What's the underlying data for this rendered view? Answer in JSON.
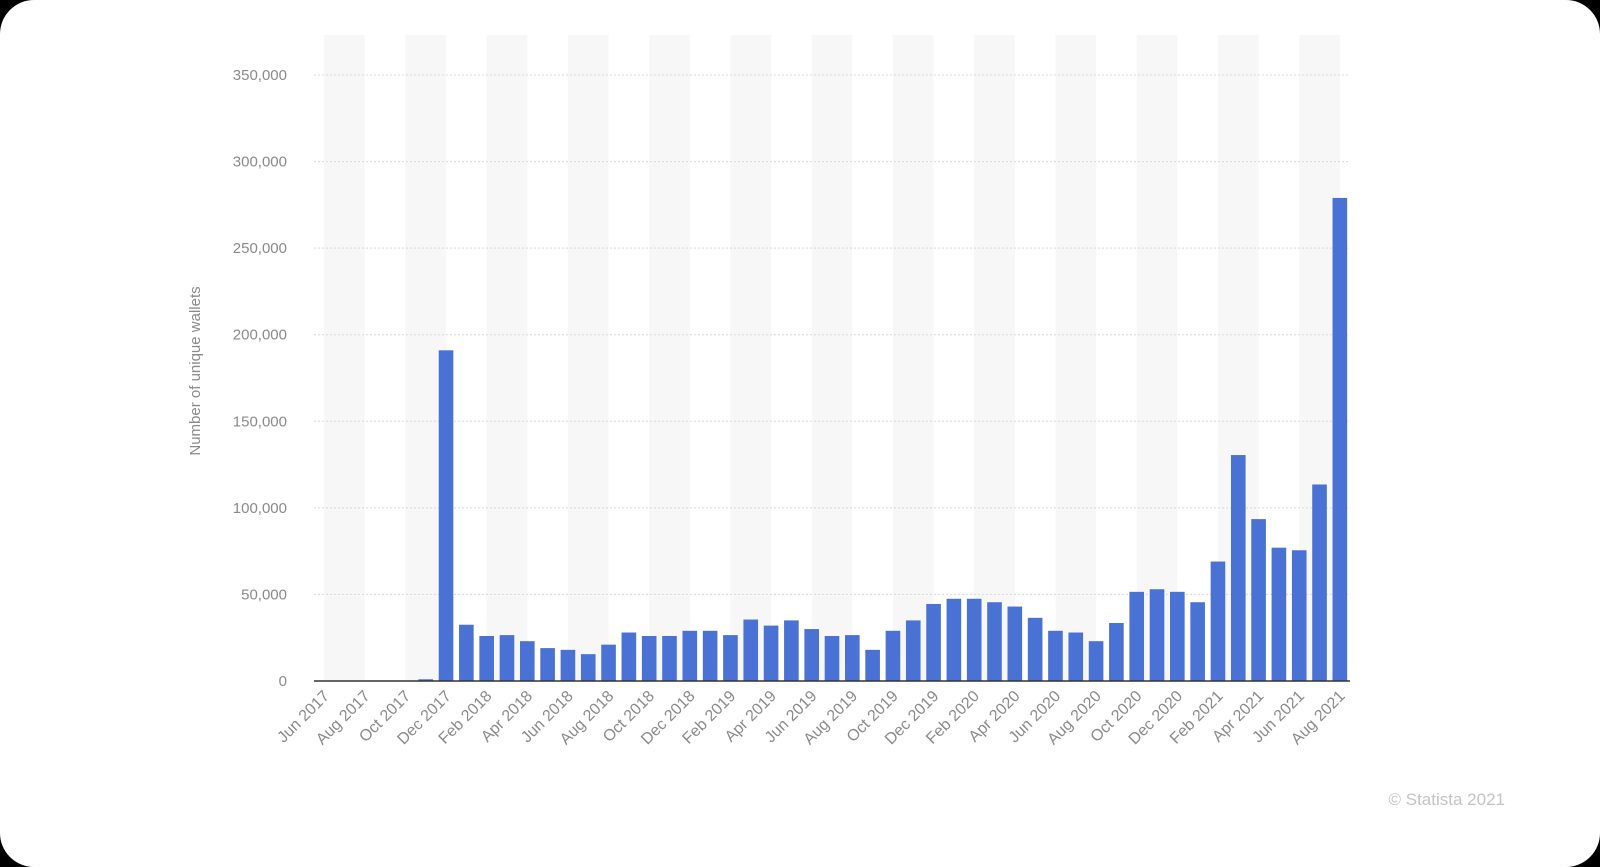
{
  "chart_data": {
    "type": "bar",
    "y_label": "Number of unique wallets",
    "credit": "© Statista 2021",
    "color": "#4a72d4",
    "grid": true,
    "categories": [
      "Jun 2017",
      null,
      "Aug 2017",
      null,
      "Oct 2017",
      null,
      "Dec 2017",
      null,
      "Feb 2018",
      null,
      "Apr 2018",
      null,
      "Jun 2018",
      null,
      "Aug 2018",
      null,
      "Oct 2018",
      null,
      "Dec 2018",
      null,
      "Feb 2019",
      null,
      "Apr 2019",
      null,
      "Jun 2019",
      null,
      "Aug 2019",
      null,
      "Oct 2019",
      null,
      "Dec 2019",
      null,
      "Feb 2020",
      null,
      "Apr 2020",
      null,
      "Jun 2020",
      null,
      "Aug 2020",
      null,
      "Oct 2020",
      null,
      "Dec 2020",
      null,
      "Feb 2021",
      null,
      "Apr 2021",
      null,
      "Jun 2021",
      null,
      "Aug 2021"
    ],
    "values": [
      0,
      0,
      0,
      0,
      0,
      1000,
      191000,
      32500,
      26000,
      26500,
      23000,
      19000,
      18000,
      15500,
      21000,
      28000,
      26000,
      26000,
      29000,
      29000,
      26500,
      35500,
      32000,
      35000,
      30000,
      26000,
      26500,
      18000,
      29000,
      35000,
      44500,
      47500,
      47500,
      45500,
      43000,
      36500,
      29000,
      28000,
      23000,
      33500,
      51500,
      53000,
      51500,
      45500,
      69000,
      130500,
      93500,
      77000,
      75500,
      113500,
      279000
    ],
    "ylim": [
      0,
      350000
    ],
    "yticks": [
      0,
      {
        "value": 50000,
        "label": "50,000"
      },
      {
        "value": 100000,
        "label": "100,000"
      },
      {
        "value": 150000,
        "label": "150,000"
      },
      {
        "value": 200000,
        "label": "200,000"
      },
      {
        "value": 250000,
        "label": "250,000"
      },
      {
        "value": 300000,
        "label": "300,000"
      },
      {
        "value": 350000,
        "label": "350,000"
      }
    ]
  }
}
